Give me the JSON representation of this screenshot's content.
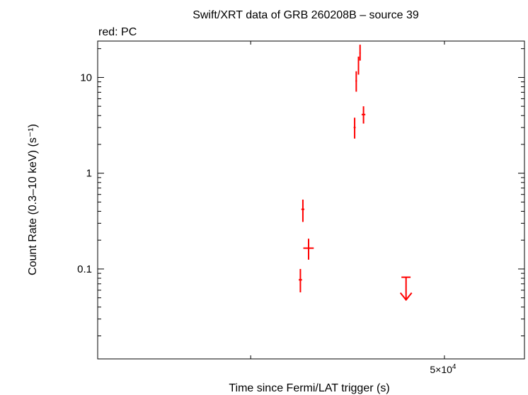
{
  "chart_data": {
    "type": "scatter",
    "title": "Swift/XRT data of GRB 260208B – source 39",
    "subtitle": "red: PC",
    "xlabel": "Time since Fermi/LAT trigger (s)",
    "ylabel": "Count Rate (0.3–10 keV) (s⁻¹)",
    "x_scale": "log",
    "y_scale": "log",
    "xlim": [
      9700,
      73000
    ],
    "ylim": [
      0.0115,
      24
    ],
    "x_tick_labels": [
      {
        "value": 50000,
        "mantissa": "5×10",
        "exponent": "4"
      }
    ],
    "x_minor_ticks": [
      20000,
      50000
    ],
    "y_ticks": [
      {
        "value": 0.1,
        "label": "0.1"
      },
      {
        "value": 1,
        "label": "1"
      },
      {
        "value": 10,
        "label": "10"
      }
    ],
    "grid": false,
    "series": [
      {
        "name": "PC",
        "color": "#ff0000",
        "points": [
          {
            "x": 25300,
            "xerr": [
              200,
              200
            ],
            "y": 0.077,
            "yerr": [
              0.02,
              0.023
            ]
          },
          {
            "x": 25600,
            "xerr": [
              180,
              180
            ],
            "y": 0.42,
            "yerr": [
              0.11,
              0.11
            ]
          },
          {
            "x": 26300,
            "xerr": [
              650,
              650
            ],
            "y": 0.165,
            "yerr": [
              0.04,
              0.042
            ]
          },
          {
            "x": 32700,
            "xerr": [
              150,
              150
            ],
            "y": 3.0,
            "yerr": [
              0.7,
              0.8
            ]
          },
          {
            "x": 32950,
            "xerr": [
              120,
              120
            ],
            "y": 9.2,
            "yerr": [
              2.1,
              2.4
            ]
          },
          {
            "x": 33300,
            "xerr": [
              110,
              110
            ],
            "y": 13.5,
            "yerr": [
              2.8,
              3.0
            ]
          },
          {
            "x": 33550,
            "xerr": [
              100,
              100
            ],
            "y": 18.0,
            "yerr": [
              3.0,
              4.0
            ]
          },
          {
            "x": 34100,
            "xerr": [
              300,
              300
            ],
            "y": 4.1,
            "yerr": [
              0.8,
              0.9
            ]
          }
        ],
        "upper_limits": [
          {
            "x": 41700,
            "xerr": [
              900,
              900
            ],
            "y": 0.082
          }
        ]
      }
    ]
  }
}
